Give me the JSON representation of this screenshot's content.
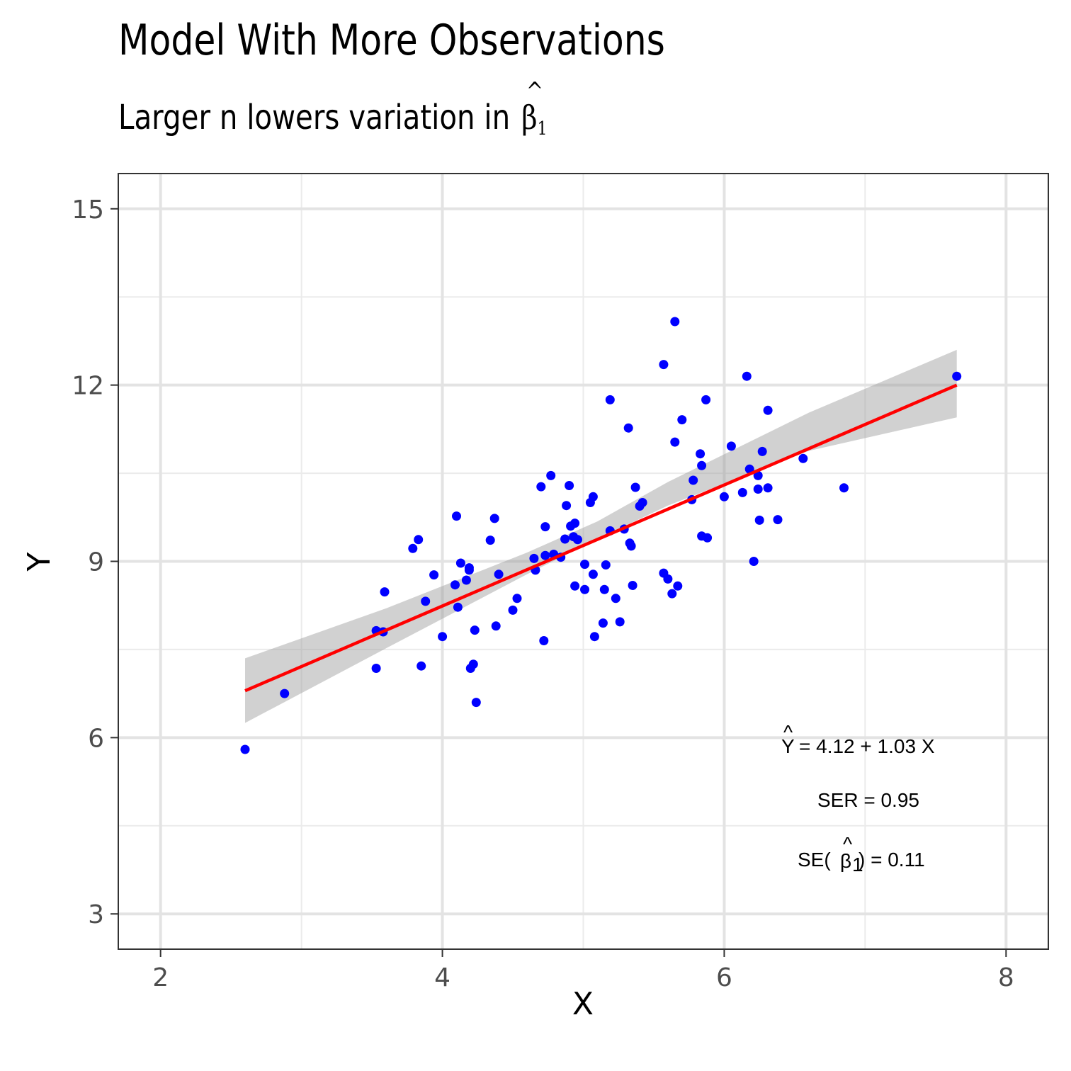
{
  "chart_data": {
    "type": "scatter",
    "title": "Model With More Observations",
    "subtitle": "Larger n lowers variation in",
    "subtitle_symbol": "β",
    "subtitle_symbol_hat": "^",
    "subtitle_symbol_sub": "1",
    "xlabel": "X",
    "ylabel": "Y",
    "xlim": [
      1.7,
      8.3
    ],
    "ylim": [
      2.4,
      15.6
    ],
    "x_ticks": [
      "2",
      "4",
      "6",
      "8"
    ],
    "x_tick_values": [
      2,
      4,
      6,
      8
    ],
    "y_ticks": [
      "3",
      "6",
      "9",
      "12",
      "15"
    ],
    "y_tick_values": [
      3,
      6,
      9,
      12,
      15
    ],
    "grid": true,
    "point_color": "#0000ff",
    "line_color": "#ff0000",
    "band_color": "#999999",
    "regression": {
      "intercept": 4.12,
      "slope": 1.03,
      "x_range": [
        2.6,
        7.65
      ]
    },
    "ci_band": {
      "x": [
        2.6,
        3.6,
        4.6,
        5.1,
        5.6,
        6.6,
        7.65
      ],
      "lower": [
        6.25,
        7.52,
        8.78,
        9.38,
        9.95,
        10.88,
        11.45
      ],
      "upper": [
        7.35,
        8.2,
        9.15,
        9.68,
        10.35,
        11.53,
        12.6
      ]
    },
    "annotations": {
      "equation_lhs": "Y",
      "equation_hat": "^",
      "equation_rhs": "= 4.12 + 1.03 X",
      "ser": "SER = 0.95",
      "se_prefix": "SE(",
      "se_symbol": "β",
      "se_hat": "^",
      "se_sub": "1",
      "se_suffix": ") = 0.11"
    },
    "points": [
      [
        2.6,
        5.8
      ],
      [
        2.88,
        6.75
      ],
      [
        3.53,
        7.82
      ],
      [
        3.53,
        7.18
      ],
      [
        3.58,
        7.8
      ],
      [
        3.59,
        8.48
      ],
      [
        3.79,
        9.22
      ],
      [
        3.83,
        9.37
      ],
      [
        3.85,
        7.22
      ],
      [
        3.88,
        8.32
      ],
      [
        3.94,
        8.77
      ],
      [
        4.0,
        7.72
      ],
      [
        4.09,
        8.6
      ],
      [
        4.1,
        9.77
      ],
      [
        4.11,
        8.22
      ],
      [
        4.13,
        8.97
      ],
      [
        4.17,
        8.68
      ],
      [
        4.19,
        8.89
      ],
      [
        4.19,
        8.85
      ],
      [
        4.2,
        7.18
      ],
      [
        4.22,
        7.25
      ],
      [
        4.23,
        7.83
      ],
      [
        4.24,
        6.6
      ],
      [
        4.34,
        9.36
      ],
      [
        4.37,
        9.73
      ],
      [
        4.38,
        7.9
      ],
      [
        4.4,
        8.78
      ],
      [
        4.5,
        8.17
      ],
      [
        4.53,
        8.37
      ],
      [
        4.65,
        9.05
      ],
      [
        4.66,
        8.85
      ],
      [
        4.7,
        10.27
      ],
      [
        4.72,
        7.65
      ],
      [
        4.73,
        9.59
      ],
      [
        4.73,
        9.1
      ],
      [
        4.77,
        10.46
      ],
      [
        4.79,
        9.12
      ],
      [
        4.84,
        9.07
      ],
      [
        4.87,
        9.38
      ],
      [
        4.88,
        9.95
      ],
      [
        4.9,
        10.29
      ],
      [
        4.91,
        9.6
      ],
      [
        4.93,
        9.42
      ],
      [
        4.94,
        8.58
      ],
      [
        4.94,
        9.65
      ],
      [
        4.96,
        9.37
      ],
      [
        5.01,
        8.95
      ],
      [
        5.01,
        8.52
      ],
      [
        5.05,
        10.0
      ],
      [
        5.07,
        8.78
      ],
      [
        5.07,
        10.1
      ],
      [
        5.08,
        7.72
      ],
      [
        5.14,
        7.95
      ],
      [
        5.15,
        8.52
      ],
      [
        5.16,
        8.94
      ],
      [
        5.19,
        11.75
      ],
      [
        5.19,
        9.52
      ],
      [
        5.23,
        8.37
      ],
      [
        5.26,
        7.97
      ],
      [
        5.29,
        9.55
      ],
      [
        5.32,
        11.27
      ],
      [
        5.33,
        9.31
      ],
      [
        5.34,
        9.26
      ],
      [
        5.35,
        8.59
      ],
      [
        5.37,
        10.26
      ],
      [
        5.4,
        9.94
      ],
      [
        5.42,
        10.0
      ],
      [
        5.57,
        12.35
      ],
      [
        5.57,
        8.8
      ],
      [
        5.6,
        8.7
      ],
      [
        5.63,
        8.45
      ],
      [
        5.65,
        13.08
      ],
      [
        5.65,
        11.03
      ],
      [
        5.67,
        8.58
      ],
      [
        5.7,
        11.41
      ],
      [
        5.77,
        10.05
      ],
      [
        5.78,
        10.38
      ],
      [
        5.83,
        10.83
      ],
      [
        5.84,
        9.43
      ],
      [
        5.84,
        10.63
      ],
      [
        5.87,
        11.75
      ],
      [
        5.88,
        9.4
      ],
      [
        6.0,
        10.1
      ],
      [
        6.05,
        10.96
      ],
      [
        6.13,
        10.17
      ],
      [
        6.16,
        12.15
      ],
      [
        6.18,
        10.57
      ],
      [
        6.21,
        9.0
      ],
      [
        6.24,
        10.23
      ],
      [
        6.24,
        10.46
      ],
      [
        6.25,
        9.7
      ],
      [
        6.27,
        10.87
      ],
      [
        6.31,
        11.57
      ],
      [
        6.31,
        10.25
      ],
      [
        6.38,
        9.71
      ],
      [
        6.56,
        10.75
      ],
      [
        6.85,
        10.25
      ],
      [
        7.65,
        12.15
      ]
    ]
  }
}
